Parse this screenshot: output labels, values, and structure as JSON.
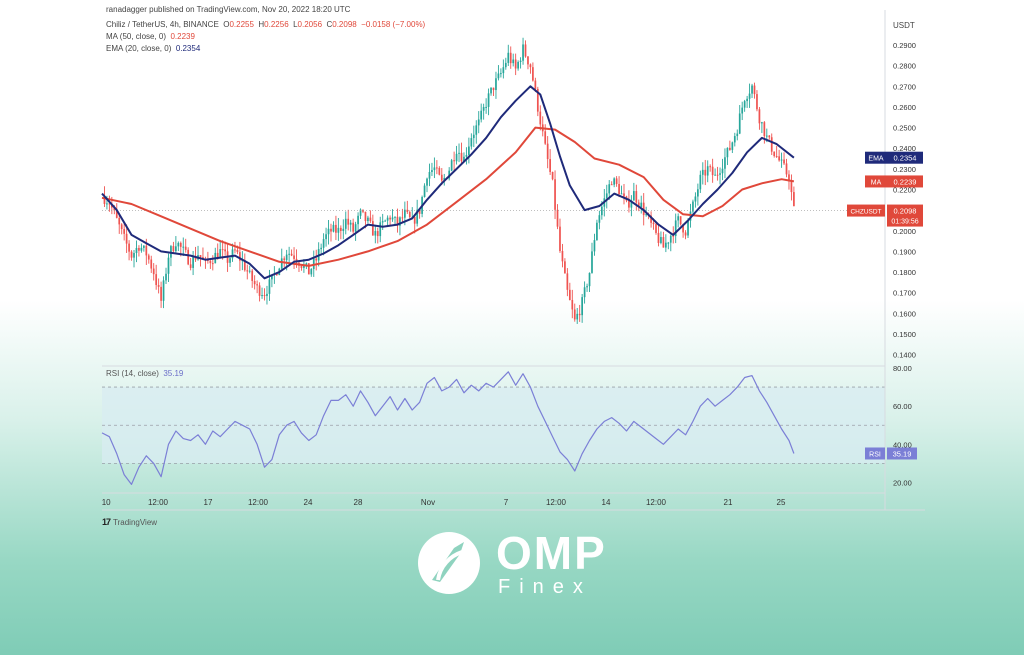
{
  "header": {
    "published_line": "ranadagger published on TradingView.com, Nov 20, 2022 18:20 UTC",
    "symbol": "Chiliz / TetherUS, 4h, BINANCE",
    "ohlc": {
      "o_label": "O",
      "o": "0.2255",
      "h_label": "H",
      "h": "0.2256",
      "l_label": "L",
      "l": "0.2056",
      "c_label": "C",
      "c": "0.2098",
      "change": "−0.0158 (−7.00%)"
    },
    "ma_legend": {
      "label": "MA (50, close, 0)",
      "value": "0.2239"
    },
    "ema_legend": {
      "label": "EMA (20, close, 0)",
      "value": "0.2354"
    }
  },
  "rsi_legend": {
    "label": "RSI (14, close)",
    "value": "35.19"
  },
  "footer": {
    "tradingview": "TradingView",
    "tv_mark": "17"
  },
  "brand": {
    "name": "OMP",
    "sub": "Finex"
  },
  "colors": {
    "up": "#26a69a",
    "down": "#ef5350",
    "ma": "#e0483a",
    "ema": "#1f2a7a",
    "rsi": "#7b7fd6",
    "rsi_band": "#d8ecf2",
    "label_dark": "#1f2a7a",
    "label_red": "#e0483a"
  },
  "chart_data": [
    {
      "type": "candlestick",
      "title": "Chiliz / TetherUS, 4h, BINANCE",
      "y_unit": "USDT",
      "ylim": [
        0.135,
        0.305
      ],
      "y_ticks": [
        "0.2900",
        "0.2800",
        "0.2700",
        "0.2600",
        "0.2500",
        "0.2400",
        "0.2300",
        "0.2200",
        "0.2100",
        "0.2000",
        "0.1900",
        "0.1800",
        "0.1700",
        "0.1600",
        "0.1500",
        "0.1400"
      ],
      "x_tick_labels": [
        "10",
        "12:00",
        "17",
        "12:00",
        "24",
        "28",
        "Nov",
        "7",
        "12:00",
        "14",
        "12:00",
        "21",
        "25"
      ],
      "current_price": {
        "symbol": "CHZUSDT",
        "value": "0.2098",
        "countdown": "01:39:56"
      },
      "last_values": {
        "ema_label": "EMA",
        "ema": "0.2354",
        "ma_label": "MA",
        "ma": "0.2239"
      },
      "close_path": [
        [
          0,
          0.217
        ],
        [
          3,
          0.214
        ],
        [
          6,
          0.205
        ],
        [
          9,
          0.196
        ],
        [
          12,
          0.188
        ],
        [
          15,
          0.193
        ],
        [
          18,
          0.189
        ],
        [
          21,
          0.18
        ],
        [
          24,
          0.166
        ],
        [
          27,
          0.188
        ],
        [
          30,
          0.195
        ],
        [
          33,
          0.19
        ],
        [
          36,
          0.185
        ],
        [
          39,
          0.189
        ],
        [
          42,
          0.184
        ],
        [
          45,
          0.187
        ],
        [
          48,
          0.19
        ],
        [
          51,
          0.186
        ],
        [
          54,
          0.19
        ],
        [
          57,
          0.185
        ],
        [
          60,
          0.178
        ],
        [
          63,
          0.172
        ],
        [
          66,
          0.17
        ],
        [
          69,
          0.176
        ],
        [
          72,
          0.184
        ],
        [
          75,
          0.19
        ],
        [
          78,
          0.188
        ],
        [
          81,
          0.184
        ],
        [
          84,
          0.18
        ],
        [
          87,
          0.186
        ],
        [
          90,
          0.196
        ],
        [
          93,
          0.2
        ],
        [
          96,
          0.2
        ],
        [
          99,
          0.205
        ],
        [
          102,
          0.2
        ],
        [
          105,
          0.208
        ],
        [
          108,
          0.204
        ],
        [
          111,
          0.198
        ],
        [
          114,
          0.203
        ],
        [
          117,
          0.207
        ],
        [
          120,
          0.203
        ],
        [
          123,
          0.208
        ],
        [
          126,
          0.204
        ],
        [
          129,
          0.21
        ],
        [
          132,
          0.228
        ],
        [
          135,
          0.23
        ],
        [
          138,
          0.223
        ],
        [
          141,
          0.23
        ],
        [
          144,
          0.24
        ],
        [
          147,
          0.235
        ],
        [
          150,
          0.246
        ],
        [
          153,
          0.252
        ],
        [
          156,
          0.262
        ],
        [
          159,
          0.27
        ],
        [
          162,
          0.276
        ],
        [
          165,
          0.285
        ],
        [
          168,
          0.278
        ],
        [
          171,
          0.288
        ],
        [
          174,
          0.28
        ],
        [
          177,
          0.26
        ],
        [
          180,
          0.24
        ],
        [
          183,
          0.222
        ],
        [
          186,
          0.19
        ],
        [
          189,
          0.17
        ],
        [
          192,
          0.156
        ],
        [
          195,
          0.165
        ],
        [
          198,
          0.18
        ],
        [
          201,
          0.205
        ],
        [
          204,
          0.215
        ],
        [
          207,
          0.225
        ],
        [
          210,
          0.22
        ],
        [
          213,
          0.212
        ],
        [
          216,
          0.218
        ],
        [
          219,
          0.212
        ],
        [
          222,
          0.205
        ],
        [
          225,
          0.198
        ],
        [
          228,
          0.192
        ],
        [
          231,
          0.198
        ],
        [
          234,
          0.205
        ],
        [
          237,
          0.2
        ],
        [
          240,
          0.212
        ],
        [
          243,
          0.225
        ],
        [
          246,
          0.23
        ],
        [
          249,
          0.226
        ],
        [
          252,
          0.233
        ],
        [
          255,
          0.24
        ],
        [
          258,
          0.25
        ],
        [
          261,
          0.265
        ],
        [
          264,
          0.27
        ],
        [
          267,
          0.255
        ],
        [
          270,
          0.245
        ],
        [
          273,
          0.238
        ],
        [
          276,
          0.232
        ],
        [
          279,
          0.226
        ],
        [
          281,
          0.2098
        ]
      ],
      "ma_path": [
        [
          0,
          0.216
        ],
        [
          12,
          0.213
        ],
        [
          24,
          0.207
        ],
        [
          36,
          0.201
        ],
        [
          48,
          0.195
        ],
        [
          60,
          0.19
        ],
        [
          72,
          0.185
        ],
        [
          84,
          0.183
        ],
        [
          96,
          0.186
        ],
        [
          108,
          0.19
        ],
        [
          120,
          0.195
        ],
        [
          132,
          0.203
        ],
        [
          144,
          0.214
        ],
        [
          156,
          0.225
        ],
        [
          168,
          0.238
        ],
        [
          176,
          0.25
        ],
        [
          184,
          0.249
        ],
        [
          192,
          0.243
        ],
        [
          200,
          0.235
        ],
        [
          210,
          0.232
        ],
        [
          220,
          0.226
        ],
        [
          228,
          0.215
        ],
        [
          236,
          0.208
        ],
        [
          244,
          0.207
        ],
        [
          252,
          0.212
        ],
        [
          260,
          0.22
        ],
        [
          268,
          0.223
        ],
        [
          276,
          0.225
        ],
        [
          281,
          0.2239
        ]
      ],
      "ema_path": [
        [
          0,
          0.218
        ],
        [
          6,
          0.21
        ],
        [
          12,
          0.198
        ],
        [
          18,
          0.194
        ],
        [
          24,
          0.19
        ],
        [
          30,
          0.189
        ],
        [
          36,
          0.188
        ],
        [
          42,
          0.186
        ],
        [
          48,
          0.187
        ],
        [
          54,
          0.188
        ],
        [
          60,
          0.184
        ],
        [
          66,
          0.177
        ],
        [
          72,
          0.18
        ],
        [
          78,
          0.185
        ],
        [
          84,
          0.186
        ],
        [
          90,
          0.189
        ],
        [
          96,
          0.193
        ],
        [
          102,
          0.198
        ],
        [
          108,
          0.203
        ],
        [
          114,
          0.202
        ],
        [
          120,
          0.203
        ],
        [
          126,
          0.206
        ],
        [
          132,
          0.215
        ],
        [
          138,
          0.223
        ],
        [
          144,
          0.23
        ],
        [
          150,
          0.237
        ],
        [
          156,
          0.245
        ],
        [
          162,
          0.255
        ],
        [
          168,
          0.263
        ],
        [
          174,
          0.27
        ],
        [
          178,
          0.266
        ],
        [
          182,
          0.252
        ],
        [
          186,
          0.236
        ],
        [
          190,
          0.222
        ],
        [
          196,
          0.21
        ],
        [
          202,
          0.212
        ],
        [
          208,
          0.218
        ],
        [
          214,
          0.215
        ],
        [
          220,
          0.21
        ],
        [
          226,
          0.203
        ],
        [
          232,
          0.198
        ],
        [
          238,
          0.205
        ],
        [
          244,
          0.213
        ],
        [
          250,
          0.22
        ],
        [
          256,
          0.228
        ],
        [
          262,
          0.238
        ],
        [
          268,
          0.245
        ],
        [
          274,
          0.242
        ],
        [
          281,
          0.2354
        ]
      ]
    },
    {
      "type": "line",
      "title": "RSI (14, close)",
      "ylim": [
        15,
        80
      ],
      "y_ticks": [
        "80.00",
        "60.00",
        "40.00",
        "20.00"
      ],
      "band": [
        30,
        70
      ],
      "mid_line": 50,
      "last_label": "RSI",
      "last_value": "35.19",
      "values_path": [
        [
          0,
          46
        ],
        [
          3,
          44
        ],
        [
          6,
          35
        ],
        [
          9,
          24
        ],
        [
          12,
          19
        ],
        [
          15,
          28
        ],
        [
          18,
          34
        ],
        [
          21,
          30
        ],
        [
          24,
          23
        ],
        [
          27,
          40
        ],
        [
          30,
          47
        ],
        [
          33,
          43
        ],
        [
          36,
          42
        ],
        [
          39,
          45
        ],
        [
          42,
          40
        ],
        [
          45,
          47
        ],
        [
          48,
          44
        ],
        [
          51,
          48
        ],
        [
          54,
          52
        ],
        [
          57,
          50
        ],
        [
          60,
          48
        ],
        [
          63,
          40
        ],
        [
          66,
          28
        ],
        [
          69,
          32
        ],
        [
          72,
          45
        ],
        [
          75,
          50
        ],
        [
          78,
          52
        ],
        [
          81,
          46
        ],
        [
          84,
          42
        ],
        [
          87,
          45
        ],
        [
          90,
          55
        ],
        [
          93,
          63
        ],
        [
          96,
          63
        ],
        [
          99,
          66
        ],
        [
          102,
          60
        ],
        [
          105,
          68
        ],
        [
          108,
          62
        ],
        [
          111,
          55
        ],
        [
          114,
          60
        ],
        [
          117,
          65
        ],
        [
          120,
          58
        ],
        [
          123,
          64
        ],
        [
          126,
          58
        ],
        [
          129,
          62
        ],
        [
          132,
          72
        ],
        [
          135,
          75
        ],
        [
          138,
          68
        ],
        [
          141,
          70
        ],
        [
          144,
          74
        ],
        [
          147,
          67
        ],
        [
          150,
          71
        ],
        [
          153,
          68
        ],
        [
          156,
          72
        ],
        [
          159,
          70
        ],
        [
          162,
          74
        ],
        [
          165,
          78
        ],
        [
          168,
          71
        ],
        [
          171,
          77
        ],
        [
          174,
          70
        ],
        [
          177,
          60
        ],
        [
          180,
          52
        ],
        [
          183,
          44
        ],
        [
          186,
          36
        ],
        [
          189,
          32
        ],
        [
          192,
          26
        ],
        [
          195,
          35
        ],
        [
          198,
          42
        ],
        [
          201,
          48
        ],
        [
          204,
          52
        ],
        [
          207,
          54
        ],
        [
          210,
          51
        ],
        [
          213,
          47
        ],
        [
          216,
          52
        ],
        [
          219,
          49
        ],
        [
          222,
          46
        ],
        [
          225,
          43
        ],
        [
          228,
          40
        ],
        [
          231,
          44
        ],
        [
          234,
          48
        ],
        [
          237,
          45
        ],
        [
          240,
          52
        ],
        [
          243,
          60
        ],
        [
          246,
          64
        ],
        [
          249,
          60
        ],
        [
          252,
          63
        ],
        [
          255,
          66
        ],
        [
          258,
          70
        ],
        [
          261,
          75
        ],
        [
          264,
          76
        ],
        [
          267,
          68
        ],
        [
          270,
          62
        ],
        [
          273,
          55
        ],
        [
          276,
          48
        ],
        [
          279,
          42
        ],
        [
          281,
          35.19
        ]
      ]
    }
  ]
}
